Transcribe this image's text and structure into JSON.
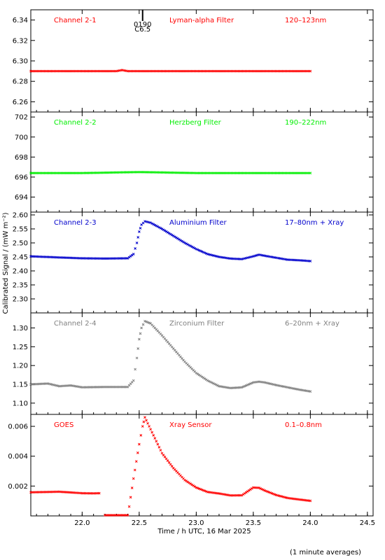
{
  "chart_data": {
    "type": "scatter",
    "ylabel": "Calibrated Signal / (mW m⁻²)",
    "xlabel": "Time / h UTC, 16 Mar 2025",
    "footnote": "(1 minute averages)",
    "xlim": [
      21.55,
      24.55
    ],
    "xticks": [
      22.0,
      22.5,
      23.0,
      23.5,
      24.0,
      24.5
    ],
    "xtick_labels": [
      "22.0",
      "22.5",
      "23.0",
      "23.5",
      "24.0",
      "24.5"
    ],
    "flare_marker": {
      "x": 22.53,
      "labels": [
        "0190",
        "C6.5"
      ]
    },
    "panels": [
      {
        "channel": "Channel 2-1",
        "filter": "Lyman-alpha Filter",
        "band": "120–123nm",
        "color": "#ff0000",
        "ylim": [
          6.25,
          6.35
        ],
        "yticks": [
          6.26,
          6.28,
          6.3,
          6.32,
          6.34
        ],
        "ytick_labels": [
          "6.26",
          "6.28",
          "6.30",
          "6.32",
          "6.34"
        ],
        "series": [
          {
            "x": [
              21.55,
              22.0,
              22.3,
              22.35,
              22.4,
              22.5,
              23.0,
              23.5,
              24.0
            ],
            "y": [
              6.29,
              6.29,
              6.29,
              6.291,
              6.29,
              6.29,
              6.29,
              6.29,
              6.29
            ]
          }
        ]
      },
      {
        "channel": "Channel 2-2",
        "filter": "Herzberg Filter",
        "band": "190–222nm",
        "color": "#00ee00",
        "ylim": [
          692.5,
          702.5
        ],
        "yticks": [
          694,
          696,
          698,
          700,
          702
        ],
        "ytick_labels": [
          "694",
          "696",
          "698",
          "700",
          "702"
        ],
        "series": [
          {
            "x": [
              21.55,
              22.0,
              22.5,
              23.0,
              23.5,
              24.0
            ],
            "y": [
              696.4,
              696.4,
              696.5,
              696.4,
              696.4,
              696.4
            ]
          }
        ]
      },
      {
        "channel": "Channel 2-3",
        "filter": "Aluminium Filter",
        "band": "17–80nm + Xray",
        "color": "#0000cc",
        "ylim": [
          2.25,
          2.61
        ],
        "yticks": [
          2.3,
          2.35,
          2.4,
          2.45,
          2.5,
          2.55,
          2.6
        ],
        "ytick_labels": [
          "2.30",
          "2.35",
          "2.40",
          "2.45",
          "2.50",
          "2.55",
          "2.60"
        ],
        "series": [
          {
            "x": [
              21.55,
              21.8,
              22.0,
              22.2,
              22.4,
              22.45,
              22.48,
              22.5,
              22.52,
              22.55,
              22.6,
              22.7,
              22.8,
              22.9,
              23.0,
              23.1,
              23.2,
              23.3,
              23.4,
              23.5,
              23.55,
              23.6,
              23.7,
              23.8,
              23.9,
              24.0
            ],
            "y": [
              2.452,
              2.448,
              2.445,
              2.444,
              2.445,
              2.46,
              2.5,
              2.54,
              2.565,
              2.577,
              2.572,
              2.55,
              2.525,
              2.5,
              2.478,
              2.46,
              2.45,
              2.444,
              2.442,
              2.452,
              2.458,
              2.454,
              2.447,
              2.44,
              2.438,
              2.435
            ]
          }
        ]
      },
      {
        "channel": "Channel 2-4",
        "filter": "Zirconium Filter",
        "band": "6–20nm + Xray",
        "color": "#808080",
        "ylim": [
          1.07,
          1.34
        ],
        "yticks": [
          1.1,
          1.15,
          1.2,
          1.25,
          1.3
        ],
        "ytick_labels": [
          "1.10",
          "1.15",
          "1.20",
          "1.25",
          "1.30"
        ],
        "series": [
          {
            "x": [
              21.55,
              21.7,
              21.8,
              21.9,
              22.0,
              22.2,
              22.4,
              22.45,
              22.48,
              22.5,
              22.52,
              22.55,
              22.6,
              22.7,
              22.8,
              22.9,
              23.0,
              23.1,
              23.2,
              23.3,
              23.4,
              23.5,
              23.55,
              23.6,
              23.7,
              23.8,
              23.9,
              24.0
            ],
            "y": [
              1.15,
              1.152,
              1.145,
              1.147,
              1.142,
              1.143,
              1.143,
              1.16,
              1.22,
              1.27,
              1.3,
              1.318,
              1.312,
              1.28,
              1.245,
              1.21,
              1.18,
              1.16,
              1.145,
              1.14,
              1.142,
              1.155,
              1.157,
              1.155,
              1.148,
              1.142,
              1.136,
              1.131
            ]
          }
        ]
      },
      {
        "channel": "GOES",
        "filter": "Xray Sensor",
        "band": "0.1–0.8nm",
        "color": "#ff0000",
        "ylim": [
          0.0,
          0.0068
        ],
        "yticks": [
          0.002,
          0.004,
          0.006
        ],
        "ytick_labels": [
          "0.002",
          "0.004",
          "0.006"
        ],
        "series": [
          {
            "x": [
              21.55,
              21.8,
              22.0,
              22.1,
              22.15
            ],
            "y": [
              0.00158,
              0.00162,
              0.00152,
              0.00151,
              0.00152
            ]
          },
          {
            "x": [
              22.2,
              22.3,
              22.35,
              22.4,
              22.45,
              22.5,
              22.53,
              22.55,
              22.6,
              22.65,
              22.7,
              22.8,
              22.9,
              23.0,
              23.1,
              23.2,
              23.3,
              23.4,
              23.5,
              23.55,
              23.6,
              23.7,
              23.8,
              23.9,
              24.0
            ],
            "y": [
              0.0,
              0.0,
              0.0,
              0.0,
              0.0025,
              0.0048,
              0.006,
              0.0066,
              0.0058,
              0.005,
              0.0042,
              0.0032,
              0.0024,
              0.0019,
              0.0016,
              0.0015,
              0.00137,
              0.00138,
              0.0019,
              0.00188,
              0.0017,
              0.0014,
              0.0012,
              0.0011,
              0.00101
            ]
          }
        ]
      }
    ]
  }
}
